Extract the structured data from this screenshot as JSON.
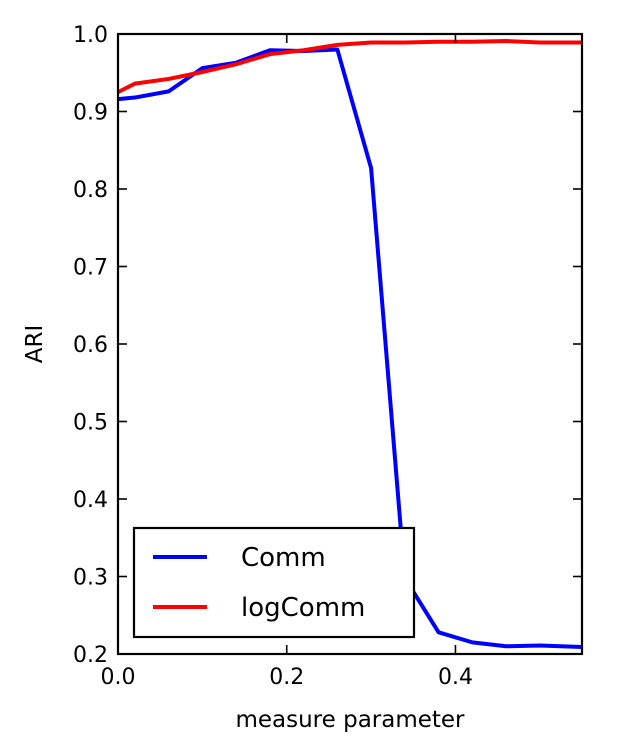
{
  "chart_data": {
    "type": "line",
    "title": "",
    "xlabel": "measure parameter",
    "ylabel": "ARI",
    "xlim": [
      0.0,
      0.55
    ],
    "ylim": [
      0.2,
      1.0
    ],
    "x_ticks": [
      0.0,
      0.2,
      0.4
    ],
    "x_tick_labels": [
      "0.0",
      "0.2",
      "0.4"
    ],
    "y_ticks": [
      0.2,
      0.3,
      0.4,
      0.5,
      0.6,
      0.7,
      0.8,
      0.9,
      1.0
    ],
    "y_tick_labels": [
      "0.2",
      "0.3",
      "0.4",
      "0.5",
      "0.6",
      "0.7",
      "0.8",
      "0.9",
      "1.0"
    ],
    "grid": false,
    "legend_position": "lower-left",
    "series": [
      {
        "name": "Comm",
        "color": "#0000ff",
        "x": [
          0.0,
          0.02,
          0.06,
          0.1,
          0.14,
          0.18,
          0.22,
          0.26,
          0.3,
          0.34,
          0.38,
          0.42,
          0.46,
          0.5,
          0.55
        ],
        "y": [
          0.916,
          0.918,
          0.926,
          0.956,
          0.963,
          0.979,
          0.978,
          0.98,
          0.827,
          0.298,
          0.228,
          0.215,
          0.21,
          0.211,
          0.209
        ]
      },
      {
        "name": "logComm",
        "color": "#ff0000",
        "x": [
          0.0,
          0.02,
          0.06,
          0.1,
          0.14,
          0.18,
          0.22,
          0.26,
          0.3,
          0.34,
          0.38,
          0.42,
          0.46,
          0.5,
          0.55
        ],
        "y": [
          0.925,
          0.936,
          0.942,
          0.951,
          0.961,
          0.974,
          0.979,
          0.986,
          0.989,
          0.989,
          0.99,
          0.99,
          0.991,
          0.989,
          0.989
        ]
      }
    ]
  }
}
